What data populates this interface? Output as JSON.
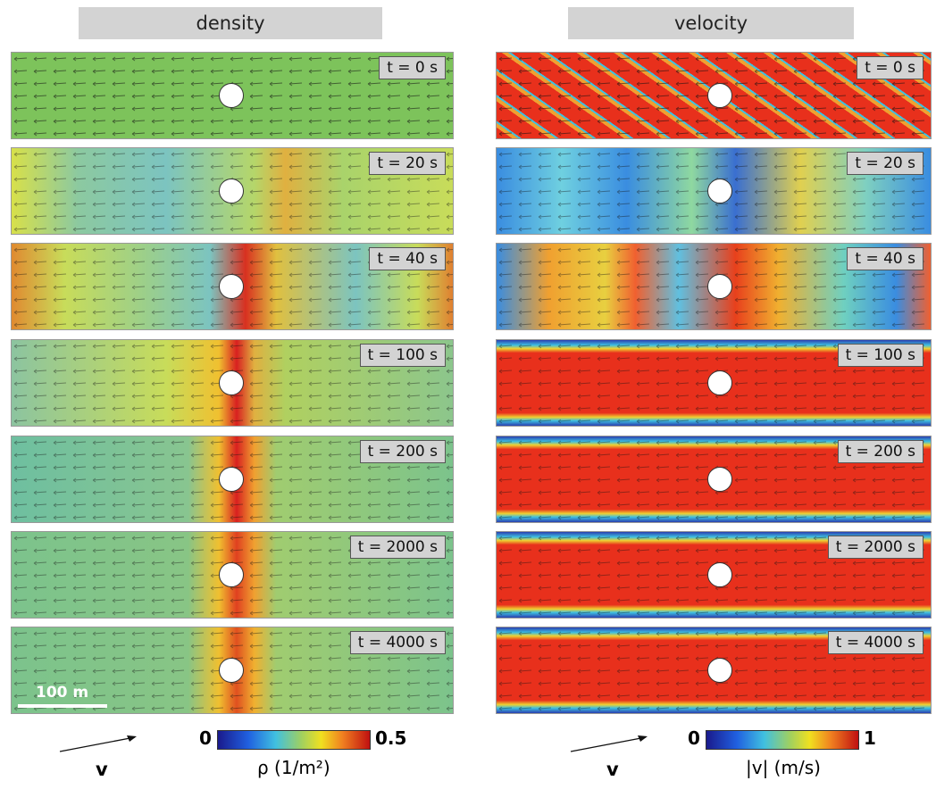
{
  "columns": [
    {
      "title": "density",
      "frames": [
        "t = 0 s",
        "t = 20 s",
        "t = 40 s",
        "t = 100 s",
        "t = 200 s",
        "t = 2000 s",
        "t = 4000 s"
      ],
      "colorbar": {
        "ticks": [
          0,
          0.5
        ],
        "label": "ρ (1/m²)"
      },
      "vector_label": "v"
    },
    {
      "title": "velocity",
      "frames": [
        "t = 0 s",
        "t = 20 s",
        "t = 40 s",
        "t = 100 s",
        "t = 200 s",
        "t = 2000 s",
        "t = 4000 s"
      ],
      "colorbar": {
        "ticks": [
          0,
          1
        ],
        "label": "|v| (m/s)"
      },
      "vector_label": "v"
    }
  ],
  "scale_bar": "100 m"
}
